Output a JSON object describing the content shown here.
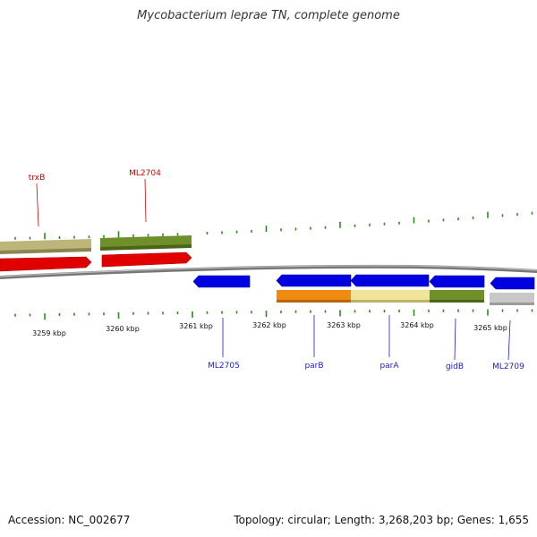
{
  "title": "Mycobacterium leprae TN, complete genome",
  "footer": {
    "accession": "Accession: NC_002677",
    "summary": "Topology: circular; Length: 3,268,203 bp; Genes: 1,655"
  },
  "colors": {
    "backbone": "#8c8c8c",
    "tick": "#2a8a1a",
    "label_top": "#cc0000",
    "label_bottom": "#1a1acc"
  },
  "kbp_labels": [
    {
      "kbp": 3259,
      "text": "3259 kbp"
    },
    {
      "kbp": 3260,
      "text": "3260 kbp"
    },
    {
      "kbp": 3261,
      "text": "3261 kbp"
    },
    {
      "kbp": 3262,
      "text": "3262 kbp"
    },
    {
      "kbp": 3263,
      "text": "3263 kbp"
    },
    {
      "kbp": 3264,
      "text": "3264 kbp"
    },
    {
      "kbp": 3265,
      "text": "3265 kbp"
    }
  ],
  "gene_labels": [
    {
      "name": "trxB",
      "strand": "forward"
    },
    {
      "name": "ML2704",
      "strand": "forward"
    },
    {
      "name": "ML2705",
      "strand": "reverse"
    },
    {
      "name": "parB",
      "strand": "reverse"
    },
    {
      "name": "parA",
      "strand": "reverse"
    },
    {
      "name": "gidB",
      "strand": "reverse"
    },
    {
      "name": "ML2709",
      "strand": "reverse"
    }
  ]
}
